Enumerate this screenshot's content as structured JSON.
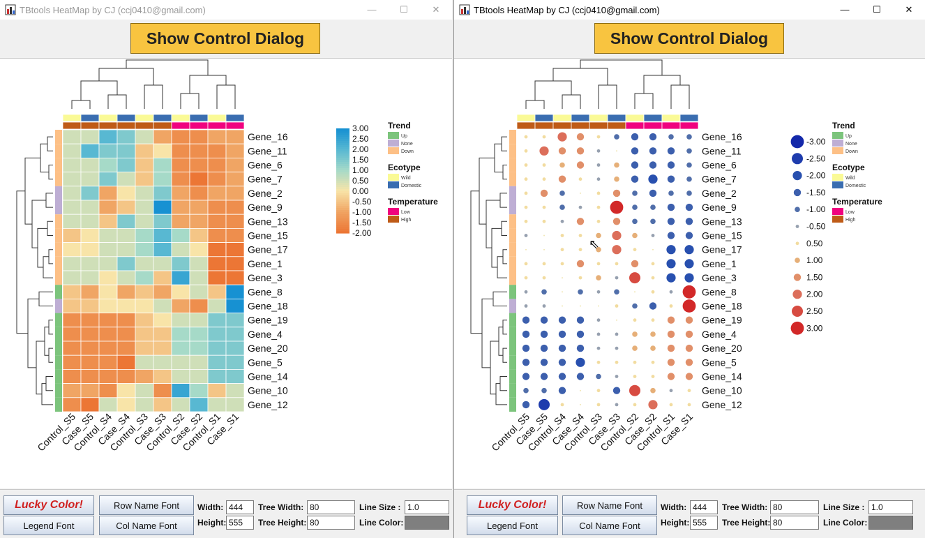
{
  "window_title": "TBtools HeatMap by CJ (ccj0410@gmail.com)",
  "window_controls": {
    "minimize": "—",
    "maximize": "☐",
    "close": "✕"
  },
  "show_button": "Show Control Dialog",
  "columns": [
    "Control_S5",
    "Case_S5",
    "Control_S4",
    "Case_S4",
    "Control_S3",
    "Case_S3",
    "Control_S2",
    "Case_S2",
    "Control_S1",
    "Case_S1"
  ],
  "rows": [
    "Gene_16",
    "Gene_11",
    "Gene_6",
    "Gene_7",
    "Gene_2",
    "Gene_9",
    "Gene_13",
    "Gene_15",
    "Gene_17",
    "Gene_1",
    "Gene_3",
    "Gene_8",
    "Gene_18",
    "Gene_19",
    "Gene_4",
    "Gene_20",
    "Gene_5",
    "Gene_14",
    "Gene_10",
    "Gene_12"
  ],
  "chart_data": {
    "type": "heatmap",
    "value_range": [
      -2,
      3
    ],
    "values": [
      [
        0.5,
        0.5,
        2,
        1.5,
        0.5,
        -1,
        -1.5,
        -1.5,
        -1,
        -1
      ],
      [
        0.5,
        2,
        1.5,
        1.5,
        -0.5,
        0,
        -1.5,
        -1.5,
        -1.5,
        -1
      ],
      [
        0.5,
        0.5,
        1,
        1.5,
        -0.5,
        1,
        -1.5,
        -1.5,
        -1.5,
        -1
      ],
      [
        0.5,
        0.5,
        1.5,
        0.5,
        -0.5,
        1,
        -1.5,
        -2,
        -1.5,
        -1
      ],
      [
        0.5,
        1.5,
        -1,
        0,
        0.5,
        1.5,
        -1,
        -1.5,
        -1,
        -1
      ],
      [
        0.5,
        0.5,
        -1,
        -0.5,
        0.5,
        3,
        -1,
        -1,
        -1.5,
        -1.5
      ],
      [
        0.5,
        0.5,
        -0.5,
        1.5,
        0.5,
        1.5,
        -1,
        -1,
        -1.5,
        -1.5
      ],
      [
        -0.5,
        0,
        0.5,
        0.5,
        1,
        2,
        1,
        -0.5,
        -1.5,
        -1.5
      ],
      [
        0,
        0,
        0.5,
        0.5,
        1,
        2,
        0.5,
        0,
        -2,
        -2
      ],
      [
        0.5,
        0.5,
        0.5,
        1.5,
        0.5,
        0.5,
        1.5,
        0.5,
        -2,
        -2
      ],
      [
        0.5,
        0.5,
        0,
        0.5,
        1,
        -0.5,
        2.5,
        0.5,
        -2,
        -2
      ],
      [
        -0.5,
        -1,
        0,
        -1,
        -0.5,
        -1,
        0,
        0.5,
        -0.5,
        3
      ],
      [
        -0.5,
        -0.5,
        0,
        0,
        0,
        0.5,
        -1,
        -1.5,
        0.5,
        3
      ],
      [
        -1.5,
        -1.5,
        -1.5,
        -1.5,
        -0.5,
        0,
        0.5,
        0.5,
        1.5,
        1.5
      ],
      [
        -1.5,
        -1.5,
        -1.5,
        -1.5,
        -0.5,
        -0.5,
        1,
        1,
        1.5,
        1.5
      ],
      [
        -1.5,
        -1.5,
        -1.5,
        -1.5,
        -0.5,
        -0.5,
        1,
        1,
        1.5,
        1.5
      ],
      [
        -1.5,
        -1.5,
        -1.5,
        -2,
        0.5,
        0.5,
        0.5,
        0.5,
        1.5,
        1.5
      ],
      [
        -1.5,
        -1.5,
        -1.5,
        -1.5,
        -1,
        -0.5,
        0.5,
        0.5,
        1.5,
        1.5
      ],
      [
        -1,
        -1,
        -1.5,
        0,
        0.5,
        -1.5,
        2.5,
        1,
        -0.5,
        0.5
      ],
      [
        -1.5,
        -2.5,
        0.5,
        0,
        0.5,
        -0.5,
        0.5,
        2,
        0.5,
        0.5
      ]
    ],
    "colorbar_ticks": [
      "3.00",
      "2.50",
      "2.00",
      "1.50",
      "1.00",
      "0.50",
      "0.00",
      "-0.50",
      "-1.00",
      "-1.50",
      "-2.00"
    ],
    "dot_legend": [
      "-3.00",
      "-2.50",
      "-2.00",
      "-1.50",
      "-1.00",
      "-0.50",
      "0.50",
      "1.00",
      "1.50",
      "2.00",
      "2.50",
      "3.00"
    ],
    "annotations": {
      "trend": [
        "Down",
        "Down",
        "Down",
        "Down",
        "None",
        "None",
        "Down",
        "Down",
        "Down",
        "Down",
        "Down",
        "Up",
        "None",
        "Up",
        "Up",
        "Up",
        "Up",
        "Up",
        "Up",
        "Up"
      ],
      "ecotype": [
        "Wild",
        "Domestic",
        "Wild",
        "Domestic",
        "Wild",
        "Domestic",
        "Wild",
        "Domestic",
        "Wild",
        "Domestic"
      ],
      "temperature": [
        "High",
        "High",
        "High",
        "High",
        "High",
        "High",
        "Low",
        "Low",
        "Low",
        "Low"
      ]
    }
  },
  "legends": [
    {
      "title": "Trend",
      "items": [
        {
          "label": "Up",
          "color": "#7cc47c"
        },
        {
          "label": "None",
          "color": "#beaed4"
        },
        {
          "label": "Down",
          "color": "#fdc086"
        }
      ]
    },
    {
      "title": "Ecotype",
      "items": [
        {
          "label": "Wild",
          "color": "#fafa96"
        },
        {
          "label": "Domestic",
          "color": "#3a6db0"
        }
      ]
    },
    {
      "title": "Temperature",
      "items": [
        {
          "label": "Low",
          "color": "#f0027f"
        },
        {
          "label": "High",
          "color": "#bf5b17"
        }
      ]
    }
  ],
  "controls": {
    "lucky_color": "Lucky Color!",
    "legend_font": "Legend Font",
    "row_name_font": "Row Name Font",
    "col_name_font": "Col Name Font",
    "width_label": "Width:",
    "width_value": "444",
    "height_label": "Height:",
    "height_value": "555",
    "tree_width_label": "Tree Width:",
    "tree_width_value": "80",
    "tree_height_label": "Tree Height:",
    "tree_height_value": "80",
    "line_size_label": "Line Size :",
    "line_size_value": "1.0",
    "line_color_label": "Line Color:",
    "line_color": "#7f7f7f"
  }
}
